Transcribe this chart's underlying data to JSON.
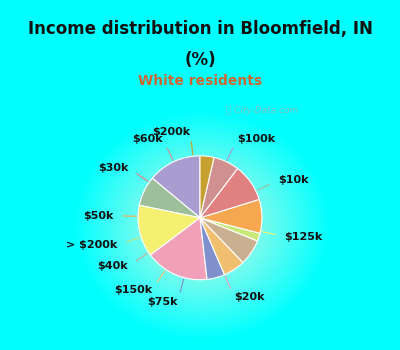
{
  "title_line1": "Income distribution in Bloomfield, IN",
  "title_line2": "(%)",
  "subtitle": "White residents",
  "title_color": "#111111",
  "subtitle_color": "#cc6633",
  "bg_color": "#00ffff",
  "labels": [
    "$100k",
    "$10k",
    "$125k",
    "$20k",
    "$75k",
    "$150k",
    "$40k",
    "> $200k",
    "$50k",
    "$30k",
    "$60k",
    "$200k"
  ],
  "values": [
    13.5,
    7.5,
    13.0,
    16.0,
    4.5,
    5.5,
    6.5,
    2.0,
    8.5,
    9.5,
    6.5,
    3.5
  ],
  "colors": [
    "#a89cd0",
    "#9dc09a",
    "#f5f070",
    "#f0a0b8",
    "#8090cc",
    "#f0c070",
    "#c8b090",
    "#c8e878",
    "#f5a850",
    "#e08080",
    "#d09090",
    "#c8a030"
  ],
  "startangle": 90,
  "label_fontsize": 8,
  "watermark": "ⓘ City-Data.com",
  "title_fontsize": 12,
  "subtitle_fontsize": 10
}
